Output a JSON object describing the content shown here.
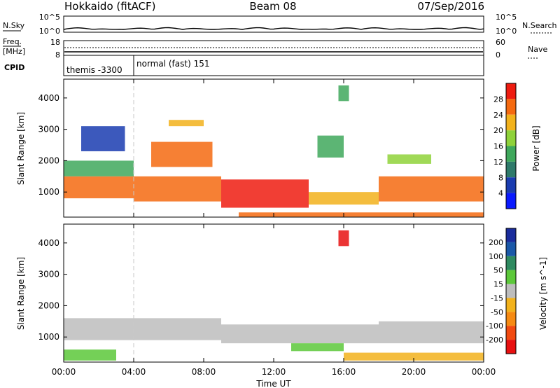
{
  "header": {
    "station": "Hokkaido (fitACF)",
    "beam": "Beam 08",
    "date": "07/Sep/2016"
  },
  "top_panel": {
    "nsky_label": "N.Sky",
    "nsearch_label": "N.Search",
    "freq_label": "Freq.",
    "freq_unit": "[MHz]",
    "nave_label": "Nave",
    "cpid_label": "CPID",
    "left_ticks": [
      "10^5",
      "10^0",
      "18",
      "8"
    ],
    "right_ticks": [
      "10^5",
      "10^0",
      "60",
      "0"
    ],
    "cpid_segments": [
      {
        "text": "themis -3300",
        "start_h": 0.0,
        "end_h": 4.0
      },
      {
        "text": "normal (fast) 151",
        "start_h": 4.0,
        "end_h": 24.0
      }
    ]
  },
  "chart_data": [
    {
      "type": "heatmap",
      "panel": "power",
      "ylabel": "Slant Range [km]",
      "ylim": [
        200,
        4600
      ],
      "yticks": [
        1000,
        2000,
        3000,
        4000
      ],
      "xlim": [
        0,
        24
      ],
      "colorbar": {
        "label": "Power [dB]",
        "ticks": [
          "4",
          "8",
          "12",
          "16",
          "20",
          "24",
          "28"
        ],
        "bins": [
          {
            "range": [
              0,
              4
            ],
            "color": "#0a1aff"
          },
          {
            "range": [
              4,
              8
            ],
            "color": "#1a3cb0"
          },
          {
            "range": [
              8,
              12
            ],
            "color": "#2e7a6a"
          },
          {
            "range": [
              12,
              16
            ],
            "color": "#3fa85c"
          },
          {
            "range": [
              16,
              20
            ],
            "color": "#8fd23a"
          },
          {
            "range": [
              20,
              24
            ],
            "color": "#f2b21c"
          },
          {
            "range": [
              24,
              28
            ],
            "color": "#f56a10"
          },
          {
            "range": [
              28,
              32
            ],
            "color": "#ee1c10"
          }
        ]
      },
      "echo_regions": [
        {
          "t": [
            0.0,
            4.0
          ],
          "range": [
            800,
            1500
          ],
          "value": 28
        },
        {
          "t": [
            0.0,
            4.0
          ],
          "range": [
            1500,
            2000
          ],
          "value": 14
        },
        {
          "t": [
            1.0,
            3.5
          ],
          "range": [
            2300,
            3100
          ],
          "value": 6
        },
        {
          "t": [
            4.0,
            9.0
          ],
          "range": [
            700,
            1500
          ],
          "value": 28
        },
        {
          "t": [
            5.0,
            8.5
          ],
          "range": [
            1800,
            2600
          ],
          "value": 26
        },
        {
          "t": [
            6.0,
            8.0
          ],
          "range": [
            3100,
            3300
          ],
          "value": 24
        },
        {
          "t": [
            9.0,
            14.0
          ],
          "range": [
            500,
            1400
          ],
          "value": 30
        },
        {
          "t": [
            14.0,
            18.0
          ],
          "range": [
            600,
            1000
          ],
          "value": 22
        },
        {
          "t": [
            14.5,
            16.0
          ],
          "range": [
            2100,
            2800
          ],
          "value": 14
        },
        {
          "t": [
            15.7,
            16.3
          ],
          "range": [
            3900,
            4400
          ],
          "value": 16
        },
        {
          "t": [
            18.0,
            24.0
          ],
          "range": [
            700,
            1500
          ],
          "value": 28
        },
        {
          "t": [
            18.5,
            21.0
          ],
          "range": [
            1900,
            2200
          ],
          "value": 18
        },
        {
          "t": [
            10.0,
            24.0
          ],
          "range": [
            200,
            350
          ],
          "value": 26
        }
      ]
    },
    {
      "type": "heatmap",
      "panel": "velocity",
      "ylabel": "Slant Range [km]",
      "ylim": [
        200,
        4600
      ],
      "yticks": [
        1000,
        2000,
        3000,
        4000
      ],
      "xlim": [
        0,
        24
      ],
      "xlabel": "Time UT",
      "xticks": [
        "00:00",
        "04:00",
        "08:00",
        "12:00",
        "16:00",
        "20:00",
        "00:00"
      ],
      "colorbar": {
        "label": "Velocity [m s^-1]",
        "ticks": [
          "200",
          "100",
          "50",
          "15",
          "-15",
          "-50",
          "-100",
          "-200"
        ],
        "bins": [
          {
            "range": [
              200,
              300
            ],
            "color": "#1a2c9c"
          },
          {
            "range": [
              100,
              200
            ],
            "color": "#1a58a8"
          },
          {
            "range": [
              50,
              100
            ],
            "color": "#2e8a60"
          },
          {
            "range": [
              15,
              50
            ],
            "color": "#5cc83a"
          },
          {
            "range": [
              -15,
              15
            ],
            "color": "#bdbdbd"
          },
          {
            "range": [
              -50,
              -15
            ],
            "color": "#f2b21c"
          },
          {
            "range": [
              -100,
              -50
            ],
            "color": "#f68a12"
          },
          {
            "range": [
              -200,
              -100
            ],
            "color": "#f24a10"
          },
          {
            "range": [
              -300,
              -200
            ],
            "color": "#e81010"
          }
        ]
      },
      "echo_regions": [
        {
          "t": [
            0.0,
            9.0
          ],
          "range": [
            900,
            1600
          ],
          "value": 0
        },
        {
          "t": [
            9.0,
            18.0
          ],
          "range": [
            800,
            1400
          ],
          "value": 0
        },
        {
          "t": [
            18.0,
            24.0
          ],
          "range": [
            800,
            1500
          ],
          "value": 0
        },
        {
          "t": [
            13.0,
            16.0
          ],
          "range": [
            550,
            800
          ],
          "value": 30
        },
        {
          "t": [
            16.0,
            24.0
          ],
          "range": [
            250,
            500
          ],
          "value": -30
        },
        {
          "t": [
            0.0,
            3.0
          ],
          "range": [
            250,
            600
          ],
          "value": 30
        },
        {
          "t": [
            15.7,
            16.3
          ],
          "range": [
            3900,
            4400
          ],
          "value": -220
        }
      ]
    }
  ],
  "colors": {
    "cpid_divider": "#c8c8c8",
    "axis": "#000000"
  }
}
